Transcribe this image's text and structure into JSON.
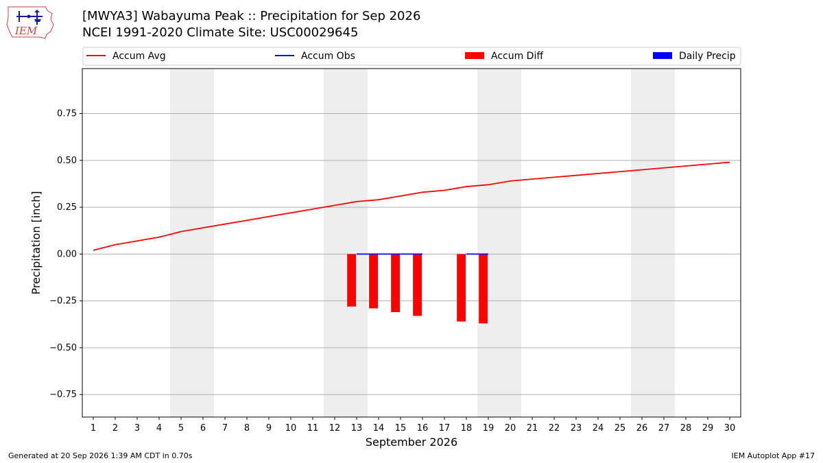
{
  "header": {
    "title_line1": "[MWYA3] Wabayuma Peak :: Precipitation for Sep 2026",
    "title_line2": "NCEI 1991-2020 Climate Site: USC00029645",
    "logo_text": "IEM"
  },
  "footer": {
    "left": "Generated at 20 Sep 2026 1:39 AM CDT in 0.70s",
    "right": "IEM Autoplot App #17"
  },
  "chart_data": {
    "type": "line",
    "xlabel": "September 2026",
    "ylabel": "Precipitation [inch]",
    "x": [
      1,
      2,
      3,
      4,
      5,
      6,
      7,
      8,
      9,
      10,
      11,
      12,
      13,
      14,
      15,
      16,
      17,
      18,
      19,
      20,
      21,
      22,
      23,
      24,
      25,
      26,
      27,
      28,
      29,
      30
    ],
    "xlim": [
      0.5,
      30.5
    ],
    "ylim": [
      -0.87,
      0.99
    ],
    "yticks": [
      0.75,
      0.5,
      0.25,
      0.0,
      -0.25,
      -0.5,
      -0.75
    ],
    "ytick_labels": [
      "0.75",
      "0.50",
      "0.25",
      "0.00",
      "−0.25",
      "−0.50",
      "−0.75"
    ],
    "grid": true,
    "legend_placement": "top",
    "weekend_bands": [
      [
        4.5,
        6.5
      ],
      [
        11.5,
        13.5
      ],
      [
        18.5,
        20.5
      ],
      [
        25.5,
        27.5
      ]
    ],
    "series": [
      {
        "name": "Accum Avg",
        "kind": "line",
        "color": "#ff0000",
        "x": [
          1,
          2,
          3,
          4,
          5,
          6,
          7,
          8,
          9,
          10,
          11,
          12,
          13,
          14,
          15,
          16,
          17,
          18,
          19,
          20,
          21,
          22,
          23,
          24,
          25,
          26,
          27,
          28,
          29,
          30
        ],
        "values": [
          0.02,
          0.05,
          0.07,
          0.09,
          0.12,
          0.14,
          0.16,
          0.18,
          0.2,
          0.22,
          0.24,
          0.26,
          0.28,
          0.29,
          0.31,
          0.33,
          0.34,
          0.36,
          0.37,
          0.39,
          0.4,
          0.41,
          0.42,
          0.43,
          0.44,
          0.45,
          0.46,
          0.47,
          0.48,
          0.49
        ]
      },
      {
        "name": "Accum Obs",
        "kind": "line",
        "color": "#0000ff",
        "segments": [
          {
            "x": [
              13,
              14,
              15,
              16
            ],
            "values": [
              0.0,
              0.0,
              0.0,
              0.0
            ]
          },
          {
            "x": [
              18,
              19
            ],
            "values": [
              0.0,
              0.0
            ]
          }
        ]
      },
      {
        "name": "Accum Diff",
        "kind": "bar",
        "color": "#ff0000",
        "x": [
          13,
          14,
          15,
          16,
          18,
          19
        ],
        "values": [
          -0.28,
          -0.29,
          -0.31,
          -0.33,
          -0.36,
          -0.37
        ]
      },
      {
        "name": "Daily Precip",
        "kind": "bar",
        "color": "#0000ff",
        "x": [],
        "values": []
      }
    ]
  }
}
